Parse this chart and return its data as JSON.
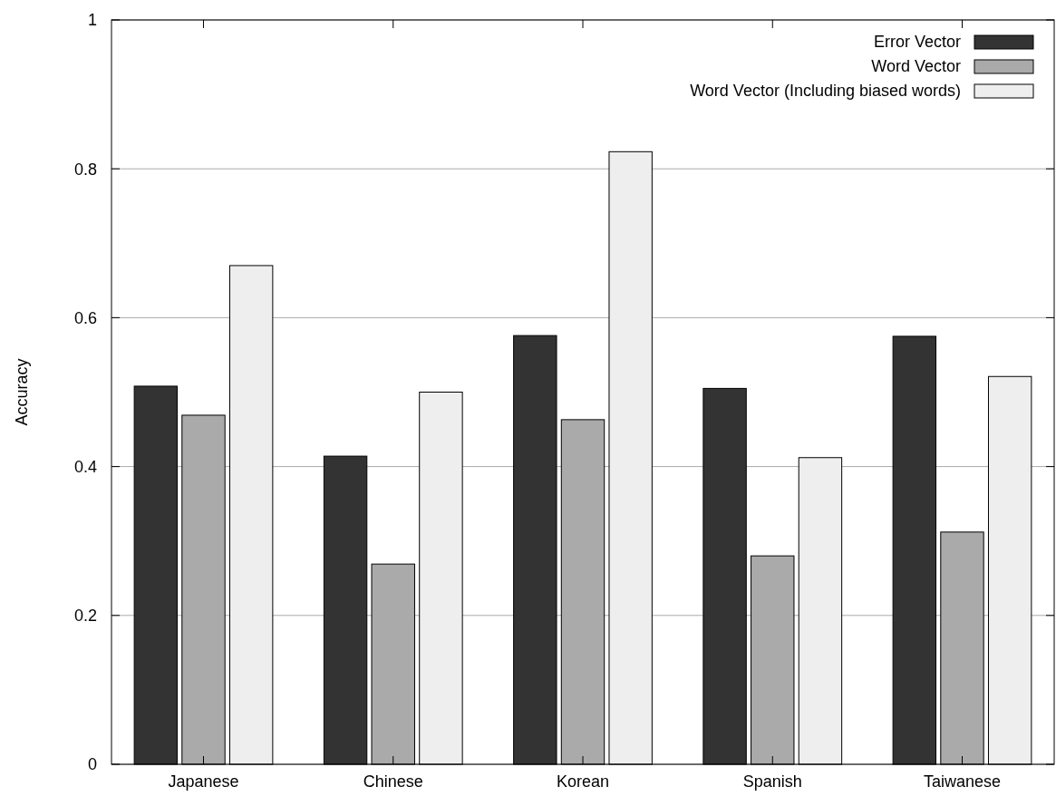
{
  "chart_data": {
    "type": "bar",
    "ylabel": "Accuracy",
    "categories": [
      "Japanese",
      "Chinese",
      "Korean",
      "Spanish",
      "Taiwanese"
    ],
    "series": [
      {
        "name": "Error Vector",
        "color": "#333333",
        "values": [
          0.508,
          0.414,
          0.576,
          0.505,
          0.575
        ]
      },
      {
        "name": "Word Vector",
        "color": "#aaaaaa",
        "values": [
          0.469,
          0.269,
          0.463,
          0.28,
          0.312
        ]
      },
      {
        "name": "Word Vector (Including biased words)",
        "color": "#eeeeee",
        "values": [
          0.67,
          0.5,
          0.823,
          0.412,
          0.521
        ]
      }
    ],
    "ylim": [
      0,
      1
    ],
    "yticks": [
      0,
      0.2,
      0.4,
      0.6,
      0.8,
      1
    ],
    "grid": "y",
    "legend": "top right"
  }
}
